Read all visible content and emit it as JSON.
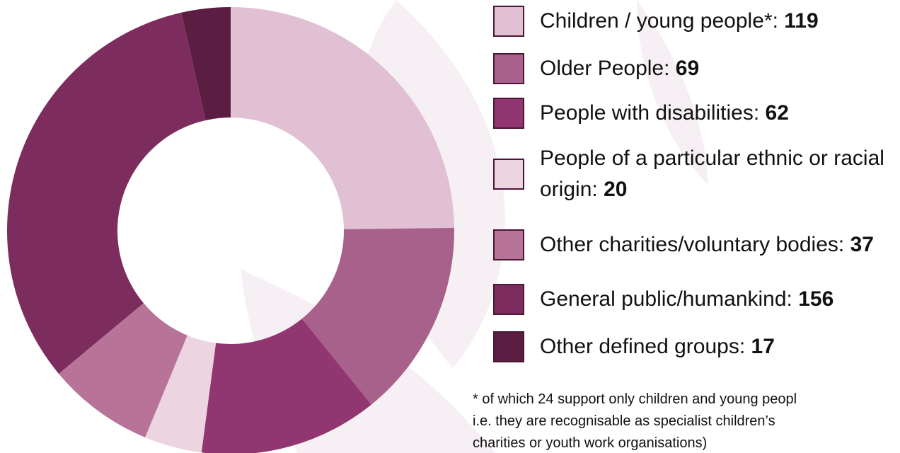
{
  "chart_data": {
    "type": "donut",
    "categories": [
      "Children / young people*:",
      "Older People:",
      "People with disabilities:",
      "People of a particular ethnic or racial origin:",
      "Other charities/voluntary bodies:",
      "General public/humankind:",
      "Other defined groups:"
    ],
    "values": [
      119,
      69,
      62,
      20,
      37,
      156,
      17
    ],
    "colors": [
      "#e0c0d2",
      "#a8618b",
      "#913670",
      "#ecd4e1",
      "#b87399",
      "#7c2d5e",
      "#5c1d43"
    ],
    "note": [
      "* of which 24 support only children and young peopl",
      "i.e. they are recognisable as specialist children’s",
      "charities or youth work organisations)"
    ]
  }
}
